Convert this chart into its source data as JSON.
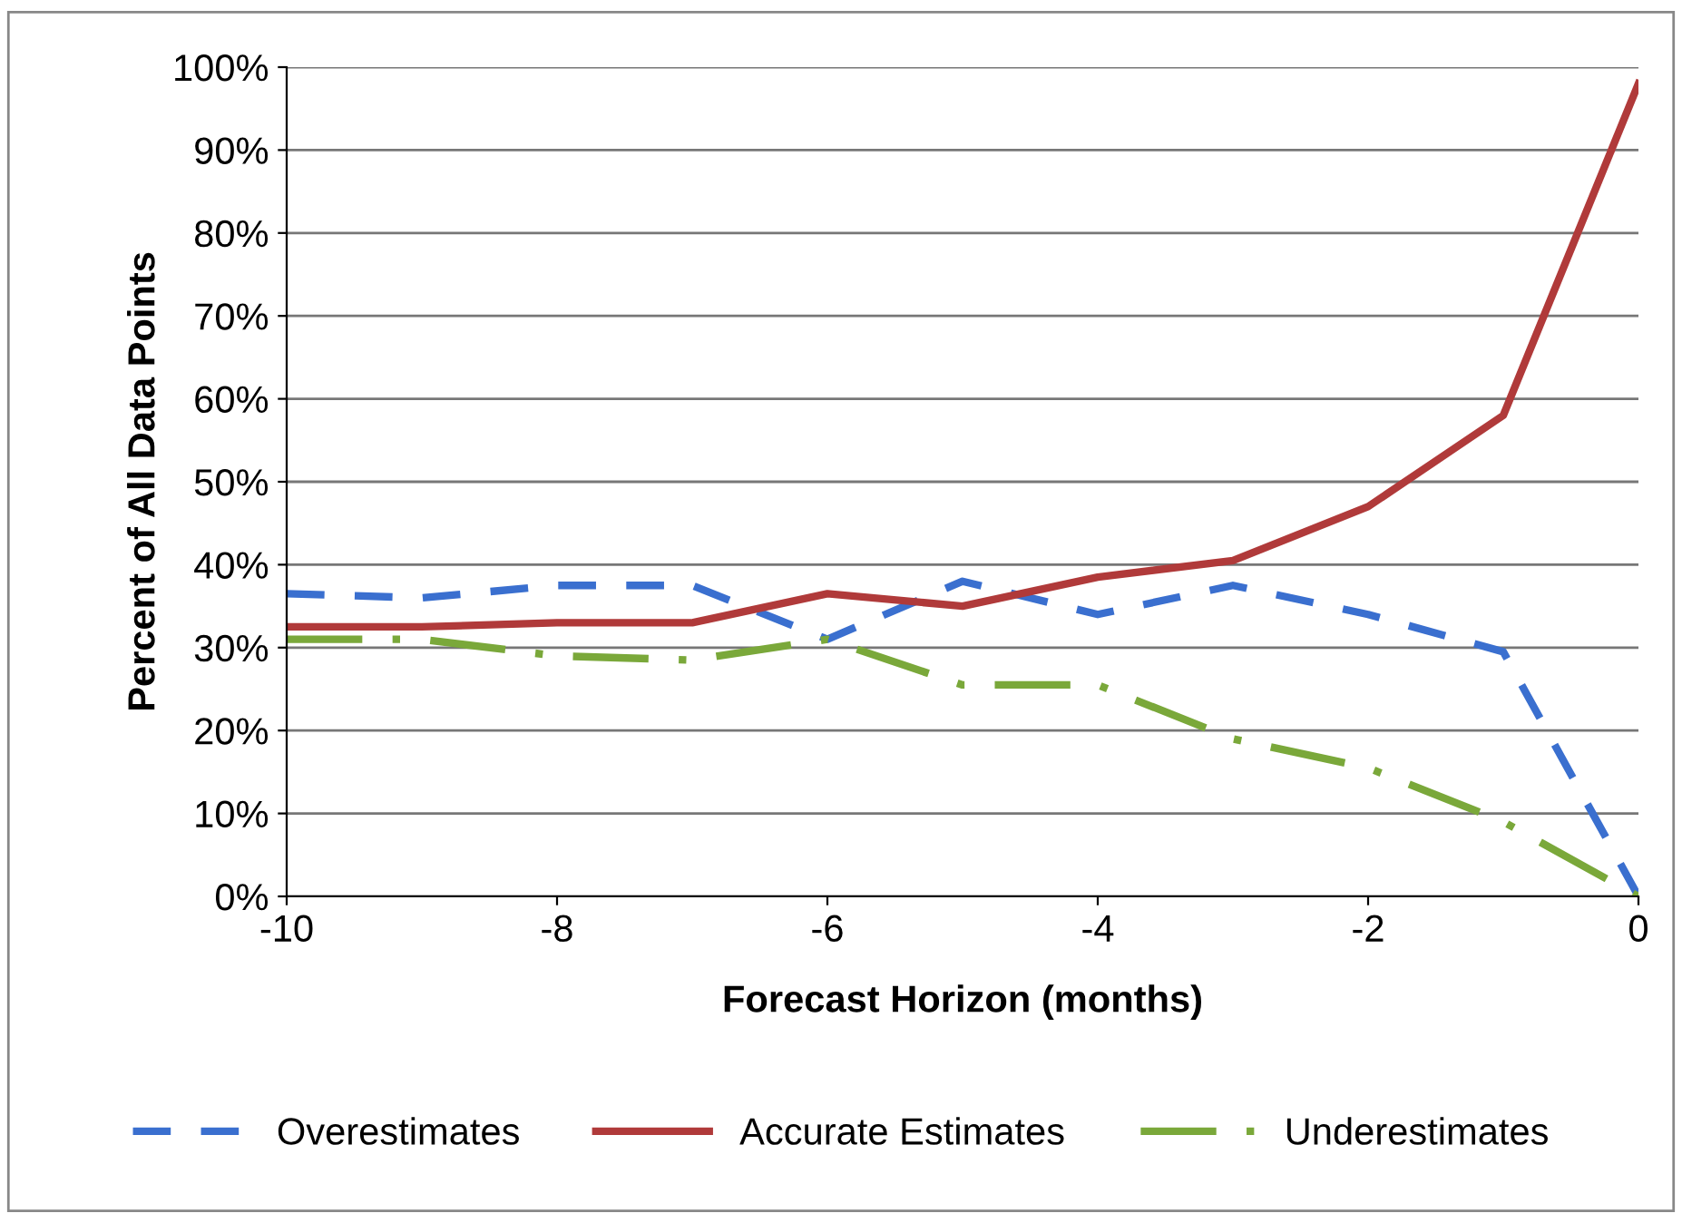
{
  "chart_data": {
    "type": "line",
    "xlabel": "Forecast Horizon (months)",
    "ylabel": "Percent of All Data Points",
    "x": [
      -10,
      -9,
      -8,
      -7,
      -6,
      -5,
      -4,
      -3,
      -2,
      -1,
      0
    ],
    "series": [
      {
        "name": "Overestimates",
        "color": "#3a6fcf",
        "line_style": "dashed",
        "values": [
          36.5,
          36,
          37.5,
          37.5,
          31,
          38,
          34,
          37.5,
          34,
          29.5,
          0
        ]
      },
      {
        "name": "Accurate Estimates",
        "color": "#b03a3a",
        "line_style": "solid",
        "values": [
          32.5,
          32.5,
          33,
          33,
          36.5,
          35,
          38.5,
          40.5,
          47,
          58,
          98
        ]
      },
      {
        "name": "Underestimates",
        "color": "#7aa83a",
        "line_style": "dashdot",
        "values": [
          31,
          31,
          29,
          28.5,
          31,
          25.5,
          25.5,
          19,
          15.5,
          9,
          0
        ]
      }
    ],
    "xlim": [
      -10,
      0
    ],
    "xticks": [
      -10,
      -8,
      -6,
      -4,
      -2,
      0
    ],
    "ylim": [
      0,
      100
    ],
    "yticks": [
      {
        "value": 0,
        "label": "0%"
      },
      {
        "value": 10,
        "label": "10%"
      },
      {
        "value": 20,
        "label": "20%"
      },
      {
        "value": 30,
        "label": "30%"
      },
      {
        "value": 40,
        "label": "40%"
      },
      {
        "value": 50,
        "label": "50%"
      },
      {
        "value": 60,
        "label": "60%"
      },
      {
        "value": 70,
        "label": "70%"
      },
      {
        "value": 80,
        "label": "80%"
      },
      {
        "value": 90,
        "label": "90%"
      },
      {
        "value": 100,
        "label": "100%"
      }
    ],
    "grid": "y",
    "legend": "bottom",
    "marker": "none"
  }
}
